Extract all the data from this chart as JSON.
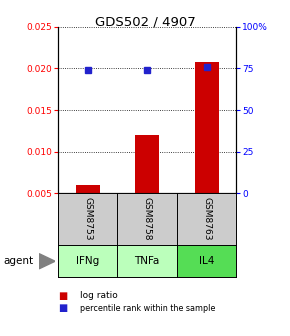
{
  "title": "GDS502 / 4907",
  "categories": [
    "IFNg",
    "TNFa",
    "IL4"
  ],
  "gsm_labels": [
    "GSM8753",
    "GSM8758",
    "GSM8763"
  ],
  "log_ratios": [
    0.006,
    0.012,
    0.0208
  ],
  "percentile_ranks_pct": [
    74,
    74,
    76
  ],
  "ylim_left": [
    0.005,
    0.025
  ],
  "ylim_right": [
    0,
    100
  ],
  "yticks_left": [
    0.005,
    0.01,
    0.015,
    0.02,
    0.025
  ],
  "yticks_right": [
    0,
    25,
    50,
    75,
    100
  ],
  "bar_color": "#cc0000",
  "dot_color": "#2222cc",
  "gsm_bg": "#cccccc",
  "agent_bg": [
    "#bbffbb",
    "#bbffbb",
    "#55dd55"
  ],
  "bar_width": 0.4,
  "x_positions": [
    1,
    2,
    3
  ]
}
